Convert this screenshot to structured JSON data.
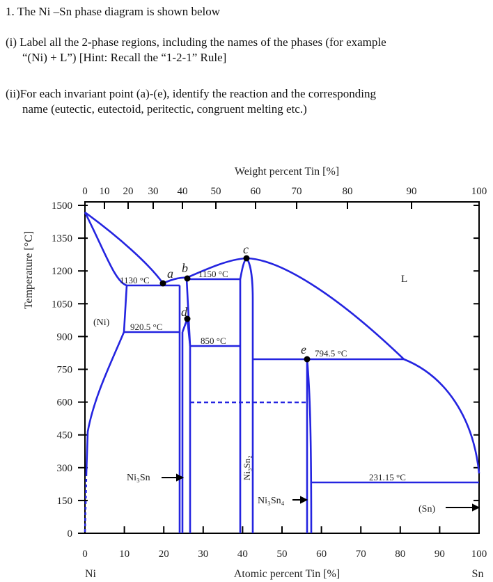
{
  "question": {
    "line1": "1.  The Ni –Sn phase diagram is shown below",
    "part_i_1": "(i)  Label all the 2-phase regions, including the names of the phases (for example",
    "part_i_2": "“(Ni) + L”)  [Hint: Recall the “1-2-1” Rule]",
    "part_ii_1": "(ii)For each invariant point (a)-(e), identify the reaction and the corresponding",
    "part_ii_2": "name (eutectic, eutectoid, peritectic, congruent melting etc.)"
  },
  "diagram": {
    "top_axis_label": "Weight percent Tin [%]",
    "top_ticks": [
      "0",
      "10",
      "20",
      "30",
      "40",
      "50",
      "60",
      "70",
      "80",
      "90",
      "100"
    ],
    "bottom_axis_label": "Atomic percent Tin [%]",
    "bottom_ticks": [
      "0",
      "10",
      "20",
      "30",
      "40",
      "50",
      "60",
      "70",
      "80",
      "90",
      "100"
    ],
    "left_end": "Ni",
    "right_end": "Sn",
    "y_axis_label": "Temperature [°C]",
    "y_ticks": [
      "1500",
      "1350",
      "1200",
      "1050",
      "900",
      "750",
      "600",
      "450",
      "300",
      "150",
      "0"
    ],
    "points": [
      "a",
      "b",
      "c",
      "d",
      "e"
    ],
    "temps": [
      "1130 °C",
      "1150 °C",
      "920.5 °C",
      "850 °C",
      "794.5 °C",
      "231.15 °C"
    ],
    "phases": {
      "ni": "(Ni)",
      "l": "L",
      "sn": "(Sn)",
      "ni3sn": "Ni₃Sn",
      "ni3sn2": "Ni₃Sn₂",
      "ni3sn4": "Ni₃Sn₄"
    },
    "line_color": "#2424e0"
  }
}
